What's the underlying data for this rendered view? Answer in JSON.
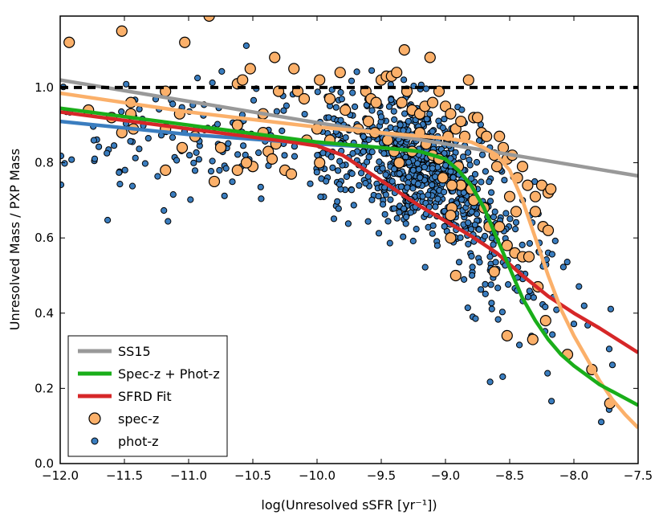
{
  "chart_data": {
    "type": "scatter",
    "xlabel": "log(Unresolved sSFR [yr⁻¹])",
    "ylabel": "Unresolved Mass / PXP Mass",
    "xlim": [
      -12.0,
      -7.5
    ],
    "ylim": [
      0.0,
      1.19
    ],
    "x_ticks": [
      -12.0,
      -11.5,
      -11.0,
      -10.5,
      -10.0,
      -9.5,
      -9.0,
      -8.5,
      -8.0,
      -7.5
    ],
    "x_tick_labels": [
      "−12.0",
      "−11.5",
      "−11.0",
      "−10.5",
      "−10.0",
      "−9.5",
      "−9.0",
      "−8.5",
      "−8.0",
      "−7.5"
    ],
    "y_ticks": [
      0.0,
      0.2,
      0.4,
      0.6,
      0.8,
      1.0
    ],
    "y_tick_labels": [
      "0.0",
      "0.2",
      "0.4",
      "0.6",
      "0.8",
      "1.0"
    ],
    "reference_line": {
      "y": 1.0,
      "style": "dashed",
      "color": "#000000"
    },
    "legend_position": "lower-left",
    "series": [
      {
        "name": "SS15",
        "kind": "line",
        "color": "#999999",
        "x": [
          -12.0,
          -7.5
        ],
        "y": [
          1.02,
          0.765
        ]
      },
      {
        "name": "Spec-z + Phot-z",
        "kind": "line",
        "color": "#1aae1a",
        "x": [
          -12.0,
          -11.0,
          -10.0,
          -9.5,
          -9.2,
          -9.0,
          -8.9,
          -8.8,
          -8.7,
          -8.6,
          -8.5,
          -8.4,
          -8.3,
          -8.2,
          -8.1,
          -8.0,
          -7.8,
          -7.5
        ],
        "y": [
          0.945,
          0.9,
          0.855,
          0.84,
          0.83,
          0.81,
          0.78,
          0.74,
          0.68,
          0.6,
          0.52,
          0.44,
          0.38,
          0.33,
          0.29,
          0.26,
          0.21,
          0.155
        ]
      },
      {
        "name": "SFRD Fit",
        "kind": "line",
        "color": "#d62728",
        "x": [
          -12.0,
          -11.0,
          -10.2,
          -10.0,
          -9.8,
          -9.6,
          -9.4,
          -9.2,
          -9.0,
          -8.8,
          -8.6,
          -8.4,
          -8.2,
          -8.0,
          -7.8,
          -7.5
        ],
        "y": [
          0.935,
          0.89,
          0.855,
          0.845,
          0.82,
          0.775,
          0.73,
          0.685,
          0.645,
          0.605,
          0.56,
          0.5,
          0.445,
          0.4,
          0.36,
          0.295
        ]
      },
      {
        "name": "",
        "kind": "line",
        "color": "#3a7dbf",
        "x": [
          -12.0,
          -11.0,
          -10.0,
          -9.5,
          -9.2,
          -9.0,
          -8.9,
          -8.8,
          -8.7,
          -8.6
        ],
        "y": [
          0.91,
          0.875,
          0.85,
          0.84,
          0.83,
          0.81,
          0.78,
          0.74,
          0.68,
          0.6
        ]
      },
      {
        "name": "",
        "kind": "line",
        "color": "#fbb06a",
        "x": [
          -12.0,
          -11.0,
          -10.0,
          -9.5,
          -9.0,
          -8.8,
          -8.7,
          -8.6,
          -8.5,
          -8.4,
          -8.3,
          -8.2,
          -8.1,
          -8.0,
          -7.9,
          -7.8,
          -7.7,
          -7.6,
          -7.5
        ],
        "y": [
          0.985,
          0.935,
          0.895,
          0.88,
          0.865,
          0.855,
          0.84,
          0.82,
          0.78,
          0.7,
          0.6,
          0.5,
          0.41,
          0.34,
          0.28,
          0.22,
          0.17,
          0.13,
          0.095
        ]
      },
      {
        "name": "spec-z",
        "kind": "scatter",
        "color": "#fbb06a",
        "edge": "#000000",
        "points": [
          [
            -11.93,
            1.12
          ],
          [
            -11.52,
            1.15
          ],
          [
            -11.03,
            1.12
          ],
          [
            -10.84,
            1.19
          ],
          [
            -11.78,
            0.94
          ],
          [
            -11.6,
            0.92
          ],
          [
            -11.45,
            0.96
          ],
          [
            -11.45,
            0.93
          ],
          [
            -11.52,
            0.88
          ],
          [
            -11.43,
            0.89
          ],
          [
            -11.18,
            0.99
          ],
          [
            -11.18,
            0.89
          ],
          [
            -11.07,
            0.93
          ],
          [
            -11.05,
            0.84
          ],
          [
            -11.18,
            0.78
          ],
          [
            -10.62,
            1.01
          ],
          [
            -10.58,
            1.02
          ],
          [
            -10.52,
            1.05
          ],
          [
            -10.33,
            1.08
          ],
          [
            -10.3,
            0.99
          ],
          [
            -10.42,
            0.93
          ],
          [
            -10.42,
            0.88
          ],
          [
            -10.18,
            1.05
          ],
          [
            -10.15,
            0.99
          ],
          [
            -10.1,
            0.97
          ],
          [
            -9.98,
            1.02
          ],
          [
            -9.9,
            0.97
          ],
          [
            -9.82,
            1.04
          ],
          [
            -9.78,
            0.94
          ],
          [
            -10.0,
            0.89
          ],
          [
            -10.08,
            0.86
          ],
          [
            -10.32,
            0.85
          ],
          [
            -10.38,
            0.83
          ],
          [
            -10.5,
            0.79
          ],
          [
            -10.75,
            0.84
          ],
          [
            -10.55,
            0.8
          ],
          [
            -10.35,
            0.81
          ],
          [
            -10.25,
            0.78
          ],
          [
            -10.62,
            0.78
          ],
          [
            -10.8,
            0.75
          ],
          [
            -10.95,
            0.87
          ],
          [
            -10.62,
            0.9
          ],
          [
            -10.2,
            0.77
          ],
          [
            -9.98,
            0.8
          ],
          [
            -9.9,
            0.86
          ],
          [
            -9.68,
            0.89
          ],
          [
            -9.62,
            0.99
          ],
          [
            -9.58,
            0.97
          ],
          [
            -9.54,
            0.96
          ],
          [
            -9.5,
            1.02
          ],
          [
            -9.46,
            1.03
          ],
          [
            -9.42,
            1.03
          ],
          [
            -9.38,
            1.04
          ],
          [
            -9.32,
            1.1
          ],
          [
            -9.3,
            0.99
          ],
          [
            -9.34,
            0.96
          ],
          [
            -9.26,
            0.94
          ],
          [
            -9.2,
            0.93
          ],
          [
            -9.16,
            0.95
          ],
          [
            -9.12,
            1.08
          ],
          [
            -9.1,
            0.96
          ],
          [
            -9.05,
            0.99
          ],
          [
            -9.0,
            0.95
          ],
          [
            -8.96,
            0.93
          ],
          [
            -8.92,
            0.89
          ],
          [
            -8.88,
            0.91
          ],
          [
            -8.85,
            0.87
          ],
          [
            -8.82,
            1.02
          ],
          [
            -8.78,
            0.92
          ],
          [
            -8.75,
            0.92
          ],
          [
            -8.72,
            0.88
          ],
          [
            -8.68,
            0.87
          ],
          [
            -8.62,
            0.82
          ],
          [
            -8.58,
            0.87
          ],
          [
            -8.55,
            0.84
          ],
          [
            -8.52,
            0.81
          ],
          [
            -8.48,
            0.82
          ],
          [
            -8.44,
            0.76
          ],
          [
            -8.4,
            0.79
          ],
          [
            -8.36,
            0.74
          ],
          [
            -8.3,
            0.71
          ],
          [
            -8.25,
            0.74
          ],
          [
            -8.2,
            0.72
          ],
          [
            -8.18,
            0.73
          ],
          [
            -9.6,
            0.91
          ],
          [
            -9.55,
            0.88
          ],
          [
            -9.45,
            0.86
          ],
          [
            -9.4,
            0.83
          ],
          [
            -9.36,
            0.8
          ],
          [
            -9.26,
            0.83
          ],
          [
            -9.2,
            0.88
          ],
          [
            -9.15,
            0.85
          ],
          [
            -9.1,
            0.82
          ],
          [
            -8.98,
            0.87
          ],
          [
            -8.9,
            0.79
          ],
          [
            -8.88,
            0.74
          ],
          [
            -8.8,
            0.73
          ],
          [
            -8.78,
            0.7
          ],
          [
            -8.95,
            0.68
          ],
          [
            -8.96,
            0.66
          ],
          [
            -8.96,
            0.6
          ],
          [
            -8.92,
            0.5
          ],
          [
            -8.7,
            0.68
          ],
          [
            -8.66,
            0.63
          ],
          [
            -8.62,
            0.51
          ],
          [
            -8.52,
            0.34
          ],
          [
            -8.58,
            0.63
          ],
          [
            -8.52,
            0.58
          ],
          [
            -8.46,
            0.56
          ],
          [
            -8.4,
            0.55
          ],
          [
            -8.3,
            0.67
          ],
          [
            -8.24,
            0.63
          ],
          [
            -8.2,
            0.62
          ],
          [
            -8.32,
            0.33
          ],
          [
            -8.28,
            0.47
          ],
          [
            -8.22,
            0.38
          ],
          [
            -8.05,
            0.29
          ],
          [
            -7.86,
            0.25
          ],
          [
            -7.72,
            0.16
          ],
          [
            -8.35,
            0.55
          ],
          [
            -8.6,
            0.79
          ],
          [
            -8.5,
            0.71
          ],
          [
            -8.45,
            0.67
          ],
          [
            -9.05,
            0.81
          ],
          [
            -9.02,
            0.76
          ],
          [
            -8.95,
            0.74
          ]
        ]
      },
      {
        "name": "phot-z",
        "kind": "scatter",
        "color": "#3a7dbf",
        "edge": "#000000"
      }
    ]
  }
}
